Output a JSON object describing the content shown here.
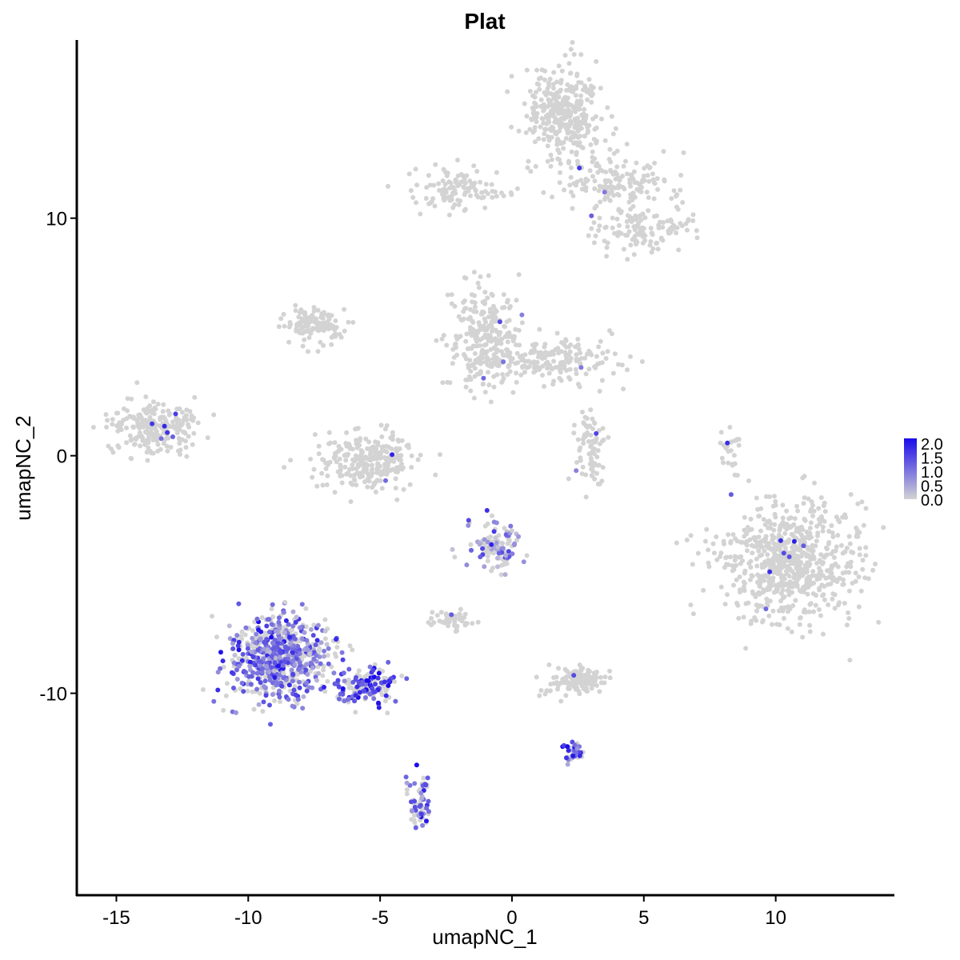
{
  "chart_data": {
    "type": "scatter",
    "title": "Plat",
    "xlabel": "umapNC_1",
    "ylabel": "umapNC_2",
    "xlim": [
      -16.5,
      14.5
    ],
    "ylim": [
      -18.5,
      17.5
    ],
    "xticks": [
      -15,
      -10,
      -5,
      0,
      5,
      10
    ],
    "xtick_labels": [
      "-15",
      "-10",
      "-5",
      "0",
      "5",
      "10"
    ],
    "yticks": [
      -10,
      0,
      10
    ],
    "ytick_labels": [
      "-10",
      "0",
      "10"
    ],
    "grid": false,
    "color_scale": {
      "low_color": "#d3d3d3",
      "high_color": "#1a0aeb",
      "min": 0.0,
      "max": 2.0,
      "legend_placement": "right",
      "legend_breaks": [
        "2.0",
        "1.5",
        "1.0",
        "0.5",
        "0.0"
      ]
    },
    "clusters": [
      {
        "cx": 2.0,
        "cy": 14.5,
        "sx": 0.7,
        "sy": 1.0,
        "n": 320,
        "expr": 0.0
      },
      {
        "cx": 4.0,
        "cy": 11.5,
        "sx": 1.2,
        "sy": 0.6,
        "n": 160,
        "expr": 0.0
      },
      {
        "cx": -2.0,
        "cy": 11.2,
        "sx": 0.9,
        "sy": 0.4,
        "n": 110,
        "expr": 0.0
      },
      {
        "cx": 5.0,
        "cy": 9.5,
        "sx": 0.9,
        "sy": 0.5,
        "n": 120,
        "expr": 0.0
      },
      {
        "cx": -7.5,
        "cy": 5.5,
        "sx": 0.6,
        "sy": 0.4,
        "n": 120,
        "expr": 0.0
      },
      {
        "cx": -1.0,
        "cy": 5.0,
        "sx": 0.7,
        "sy": 1.1,
        "n": 260,
        "expr": 0.0
      },
      {
        "cx": 1.5,
        "cy": 4.0,
        "sx": 1.3,
        "sy": 0.5,
        "n": 180,
        "expr": 0.0
      },
      {
        "cx": -13.5,
        "cy": 1.2,
        "sx": 0.8,
        "sy": 0.5,
        "n": 260,
        "expr": 0.0
      },
      {
        "cx": -5.5,
        "cy": -0.3,
        "sx": 1.0,
        "sy": 0.6,
        "n": 260,
        "expr": 0.0
      },
      {
        "cx": 3.0,
        "cy": 0.3,
        "sx": 0.3,
        "sy": 0.8,
        "n": 80,
        "expr": 0.0
      },
      {
        "cx": 10.5,
        "cy": -4.5,
        "sx": 1.4,
        "sy": 1.2,
        "n": 700,
        "expr": 0.0
      },
      {
        "cx": -0.5,
        "cy": -3.8,
        "sx": 0.5,
        "sy": 0.5,
        "n": 110,
        "expr": 0.6
      },
      {
        "cx": -8.8,
        "cy": -8.5,
        "sx": 0.9,
        "sy": 0.9,
        "n": 700,
        "expr": 1.0
      },
      {
        "cx": -5.5,
        "cy": -9.8,
        "sx": 0.6,
        "sy": 0.4,
        "n": 160,
        "expr": 1.4
      },
      {
        "cx": 2.5,
        "cy": -9.5,
        "sx": 0.6,
        "sy": 0.3,
        "n": 120,
        "expr": 0.0
      },
      {
        "cx": -3.5,
        "cy": -14.7,
        "sx": 0.2,
        "sy": 0.6,
        "n": 70,
        "expr": 1.1
      },
      {
        "cx": -2.3,
        "cy": -6.9,
        "sx": 0.4,
        "sy": 0.2,
        "n": 50,
        "expr": 0.0
      },
      {
        "cx": 2.3,
        "cy": -12.5,
        "sx": 0.2,
        "sy": 0.2,
        "n": 40,
        "expr": 1.3
      },
      {
        "cx": 8.3,
        "cy": 0.2,
        "sx": 0.2,
        "sy": 0.6,
        "n": 25,
        "expr": 0.0
      }
    ]
  }
}
